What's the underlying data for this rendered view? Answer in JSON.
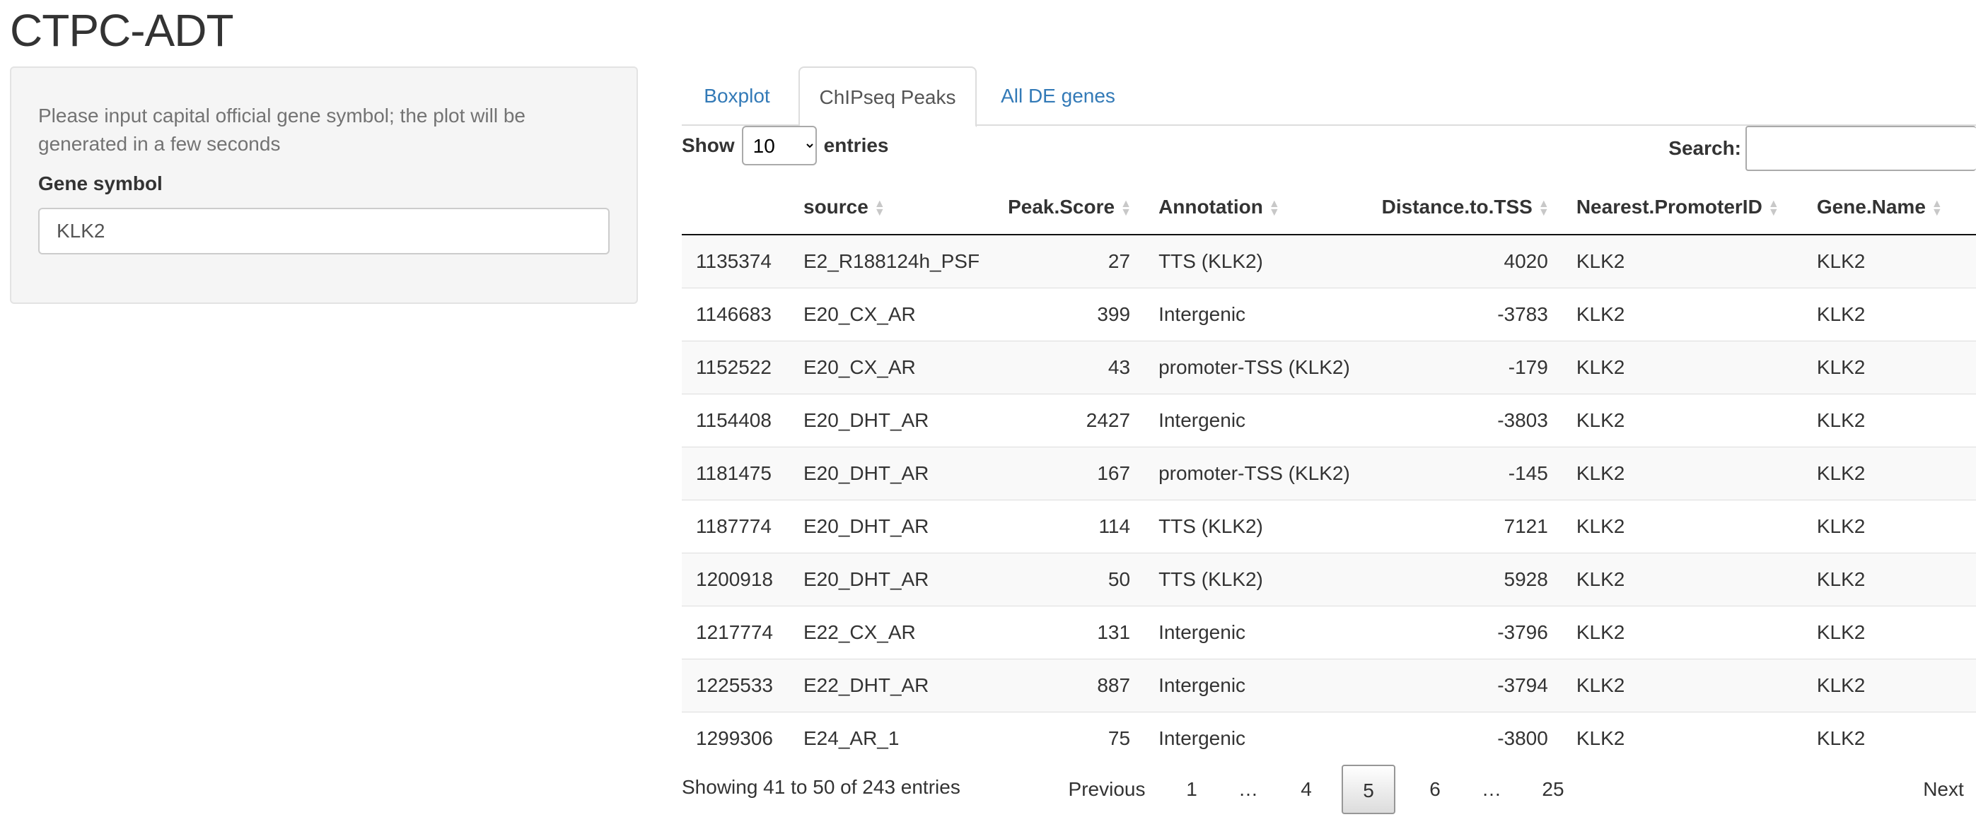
{
  "app": {
    "title": "CTPC-ADT"
  },
  "sidebar": {
    "help_text": "Please input capital official gene symbol; the plot will be generated in a few seconds",
    "field_label": "Gene symbol",
    "gene_value": "KLK2"
  },
  "tabs": [
    {
      "label": "Boxplot",
      "active": false
    },
    {
      "label": "ChIPseq Peaks",
      "active": true
    },
    {
      "label": "All DE genes",
      "active": false
    }
  ],
  "table_controls": {
    "show_label": "Show",
    "length_value": "10",
    "entries_label": "entries",
    "search_label": "Search:"
  },
  "table": {
    "columns": [
      "",
      "source",
      "Peak.Score",
      "Annotation",
      "Distance.to.TSS",
      "Nearest.PromoterID",
      "Gene.Name"
    ],
    "rows": [
      [
        "1135374",
        "E2_R188124h_PSF",
        "27",
        "TTS (KLK2)",
        "4020",
        "KLK2",
        "KLK2"
      ],
      [
        "1146683",
        "E20_CX_AR",
        "399",
        "Intergenic",
        "-3783",
        "KLK2",
        "KLK2"
      ],
      [
        "1152522",
        "E20_CX_AR",
        "43",
        "promoter-TSS (KLK2)",
        "-179",
        "KLK2",
        "KLK2"
      ],
      [
        "1154408",
        "E20_DHT_AR",
        "2427",
        "Intergenic",
        "-3803",
        "KLK2",
        "KLK2"
      ],
      [
        "1181475",
        "E20_DHT_AR",
        "167",
        "promoter-TSS (KLK2)",
        "-145",
        "KLK2",
        "KLK2"
      ],
      [
        "1187774",
        "E20_DHT_AR",
        "114",
        "TTS (KLK2)",
        "7121",
        "KLK2",
        "KLK2"
      ],
      [
        "1200918",
        "E20_DHT_AR",
        "50",
        "TTS (KLK2)",
        "5928",
        "KLK2",
        "KLK2"
      ],
      [
        "1217774",
        "E22_CX_AR",
        "131",
        "Intergenic",
        "-3796",
        "KLK2",
        "KLK2"
      ],
      [
        "1225533",
        "E22_DHT_AR",
        "887",
        "Intergenic",
        "-3794",
        "KLK2",
        "KLK2"
      ],
      [
        "1299306",
        "E24_AR_1",
        "75",
        "Intergenic",
        "-3800",
        "KLK2",
        "KLK2"
      ]
    ]
  },
  "footer": {
    "info": "Showing 41 to 50 of 243 entries",
    "pagination": [
      "Previous",
      "1",
      "…",
      "4",
      "5",
      "6",
      "…",
      "25",
      "Next"
    ],
    "current_page": "5"
  },
  "colors": {
    "link": "#337ab7",
    "text": "#333333",
    "panel_bg": "#f5f5f5"
  },
  "icons": {
    "sort": "sort-both-icon",
    "select": "chevron-down-icon"
  }
}
